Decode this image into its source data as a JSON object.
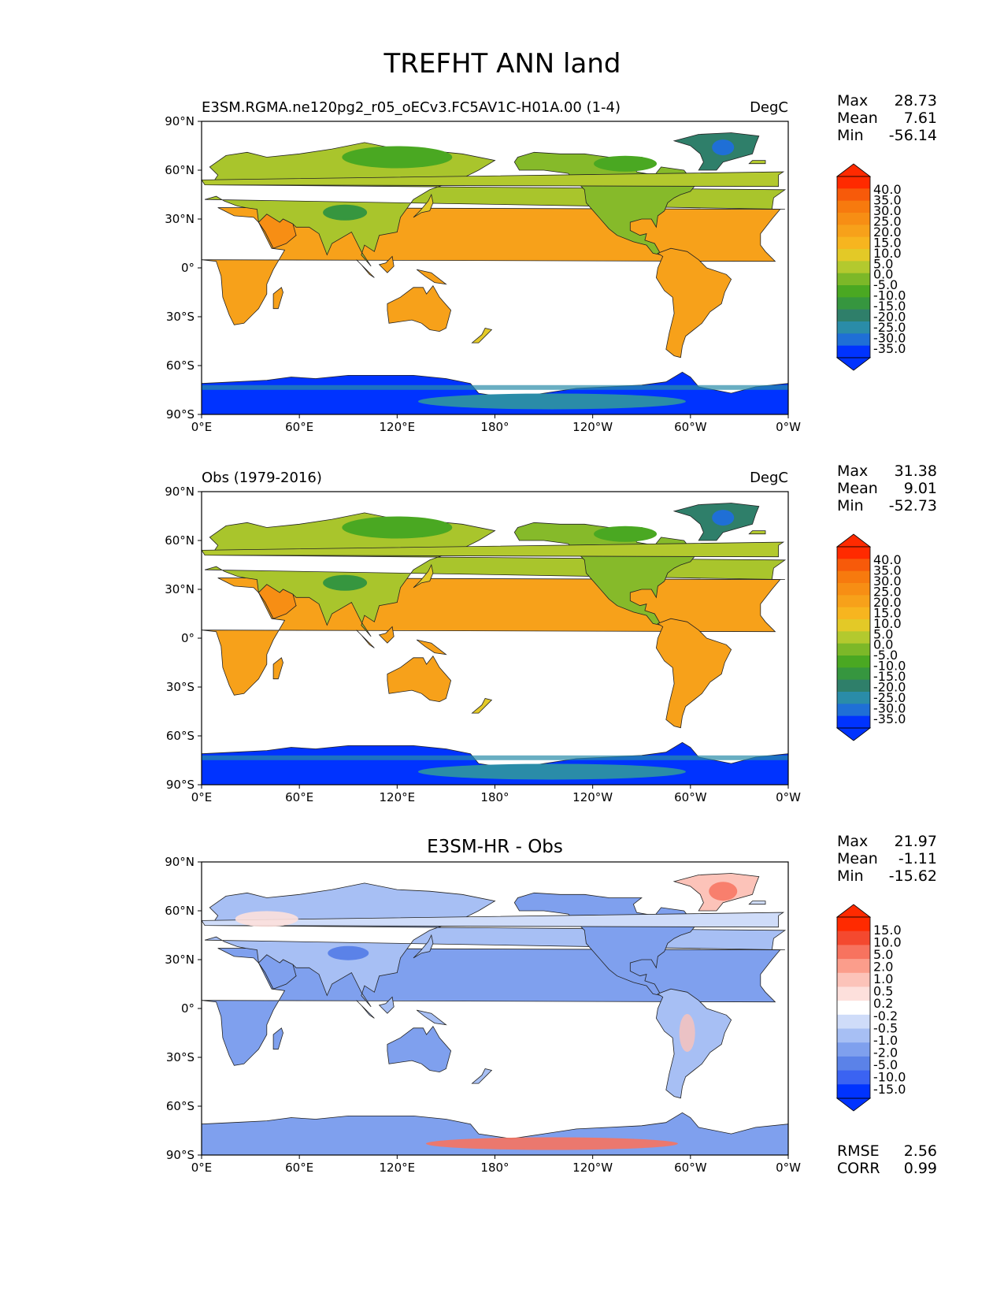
{
  "figure": {
    "title": "TREFHT ANN land"
  },
  "colors": {
    "abs_scale": [
      "#0033ff",
      "#1f6fd6",
      "#2a8ca8",
      "#2f7f6a",
      "#36963f",
      "#4aa822",
      "#7cb828",
      "#b3c92e",
      "#e3c927",
      "#f7b51f",
      "#f7a11a",
      "#f78e14",
      "#f77a0e",
      "#f75a0a",
      "#ff2a00"
    ],
    "diff_scale": [
      "#0033ff",
      "#3b63f2",
      "#5b82e8",
      "#7fa0ee",
      "#a7bff4",
      "#cfdcf9",
      "#ffffff",
      "#fde0dc",
      "#fcc3b9",
      "#fb9d8b",
      "#f7735f",
      "#f4492f",
      "#ff2a00"
    ],
    "ocean": "#ffffff",
    "antarctic_deep": "#0033ff",
    "antarctic_edge": "#2a8ca8"
  },
  "axes": {
    "x_ticks": [
      "0°E",
      "60°E",
      "120°E",
      "180°",
      "120°W",
      "60°W",
      "0°W"
    ],
    "y_ticks": [
      "90°N",
      "60°N",
      "30°N",
      "0°",
      "30°S",
      "60°S",
      "90°S"
    ]
  },
  "panels": [
    {
      "id": "model",
      "left_title": "E3SM.RGMA.ne120pg2_r05_oECv3.FC5AV1C-H01A.00 (1-4)",
      "right_title": "DegC",
      "center_title": "",
      "stats": [
        {
          "label": "Max",
          "value": "28.73"
        },
        {
          "label": "Mean",
          "value": "7.61"
        },
        {
          "label": "Min",
          "value": "-56.14"
        }
      ],
      "colorbar": {
        "scale": "abs",
        "labels": [
          "40.0",
          "35.0",
          "30.0",
          "25.0",
          "20.0",
          "15.0",
          "10.0",
          "5.0",
          "0.0",
          "-5.0",
          "-10.0",
          "-15.0",
          "-20.0",
          "-25.0",
          "-30.0",
          "-35.0"
        ]
      },
      "extra_stats": []
    },
    {
      "id": "obs",
      "left_title": "Obs (1979-2016)",
      "right_title": "DegC",
      "center_title": "",
      "stats": [
        {
          "label": "Max",
          "value": "31.38"
        },
        {
          "label": "Mean",
          "value": "9.01"
        },
        {
          "label": "Min",
          "value": "-52.73"
        }
      ],
      "colorbar": {
        "scale": "abs",
        "labels": [
          "40.0",
          "35.0",
          "30.0",
          "25.0",
          "20.0",
          "15.0",
          "10.0",
          "5.0",
          "0.0",
          "-5.0",
          "-10.0",
          "-15.0",
          "-20.0",
          "-25.0",
          "-30.0",
          "-35.0"
        ]
      },
      "extra_stats": []
    },
    {
      "id": "diff",
      "left_title": "",
      "right_title": "",
      "center_title": "E3SM-HR - Obs",
      "stats": [
        {
          "label": "Max",
          "value": "21.97"
        },
        {
          "label": "Mean",
          "value": "-1.11"
        },
        {
          "label": "Min",
          "value": "-15.62"
        }
      ],
      "colorbar": {
        "scale": "diff",
        "labels": [
          "15.0",
          "10.0",
          "5.0",
          "2.0",
          "1.0",
          "0.5",
          "0.2",
          "-0.2",
          "-0.5",
          "-1.0",
          "-2.0",
          "-5.0",
          "-10.0",
          "-15.0"
        ]
      },
      "extra_stats": [
        {
          "label": "RMSE",
          "value": "2.56"
        },
        {
          "label": "CORR",
          "value": "0.99"
        }
      ]
    }
  ],
  "chart_data": [
    {
      "type": "heatmap",
      "title": "E3SM.RGMA.ne120pg2_r05_oECv3.FC5AV1C-H01A.00 (1-4)",
      "units": "DegC",
      "variable": "TREFHT ANN land",
      "x_range_deg": [
        0,
        360
      ],
      "y_range_deg": [
        -90,
        90
      ],
      "levels": [
        -35,
        -30,
        -25,
        -20,
        -15,
        -10,
        -5,
        0,
        5,
        10,
        15,
        20,
        25,
        30,
        35,
        40
      ],
      "stats": {
        "max": 28.73,
        "mean": 7.61,
        "min": -56.14
      }
    },
    {
      "type": "heatmap",
      "title": "Obs (1979-2016)",
      "units": "DegC",
      "x_range_deg": [
        0,
        360
      ],
      "y_range_deg": [
        -90,
        90
      ],
      "levels": [
        -35,
        -30,
        -25,
        -20,
        -15,
        -10,
        -5,
        0,
        5,
        10,
        15,
        20,
        25,
        30,
        35,
        40
      ],
      "stats": {
        "max": 31.38,
        "mean": 9.01,
        "min": -52.73
      }
    },
    {
      "type": "heatmap",
      "title": "E3SM-HR - Obs",
      "x_range_deg": [
        0,
        360
      ],
      "y_range_deg": [
        -90,
        90
      ],
      "levels": [
        -15,
        -10,
        -5,
        -2,
        -1,
        -0.5,
        -0.2,
        0.2,
        0.5,
        1,
        2,
        5,
        10,
        15
      ],
      "stats": {
        "max": 21.97,
        "mean": -1.11,
        "min": -15.62,
        "rmse": 2.56,
        "corr": 0.99
      }
    }
  ]
}
